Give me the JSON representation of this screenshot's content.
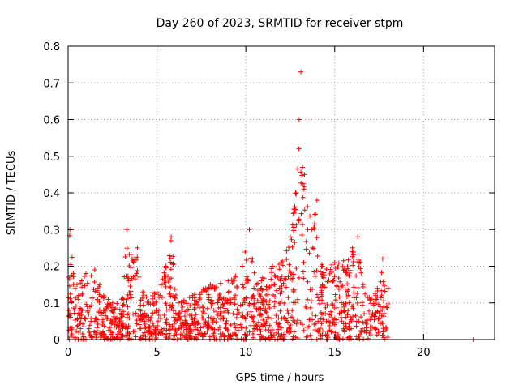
{
  "chart_data": {
    "type": "scatter",
    "title": "Day 260 of 2023, SRMTID for receiver stpm",
    "xlabel": "GPS time / hours",
    "ylabel": "SRMTID / TECUs",
    "xlim": [
      0,
      24
    ],
    "ylim": [
      0,
      0.8
    ],
    "x_ticks": [
      0,
      5,
      10,
      15,
      20
    ],
    "y_ticks": [
      0,
      0.1,
      0.2,
      0.3,
      0.4,
      0.5,
      0.6,
      0.7,
      0.8
    ],
    "x_tick_labels": [
      "0",
      "5",
      "10",
      "15",
      "20"
    ],
    "y_tick_labels": [
      "0",
      "0.1",
      "0.2",
      "0.3",
      "0.4",
      "0.5",
      "0.6",
      "0.7",
      "0.8"
    ],
    "grid": true,
    "marker": "+",
    "marker_color": "#ff0000",
    "envelope": [
      {
        "x": 0.0,
        "y": 0.17
      },
      {
        "x": 0.1,
        "y": 0.3
      },
      {
        "x": 0.3,
        "y": 0.18
      },
      {
        "x": 0.5,
        "y": 0.15
      },
      {
        "x": 1.0,
        "y": 0.18
      },
      {
        "x": 1.5,
        "y": 0.19
      },
      {
        "x": 2.0,
        "y": 0.12
      },
      {
        "x": 2.5,
        "y": 0.1
      },
      {
        "x": 3.0,
        "y": 0.11
      },
      {
        "x": 3.3,
        "y": 0.3
      },
      {
        "x": 3.6,
        "y": 0.22
      },
      {
        "x": 3.9,
        "y": 0.25
      },
      {
        "x": 4.2,
        "y": 0.13
      },
      {
        "x": 5.0,
        "y": 0.13
      },
      {
        "x": 5.5,
        "y": 0.2
      },
      {
        "x": 5.8,
        "y": 0.28
      },
      {
        "x": 6.2,
        "y": 0.1
      },
      {
        "x": 7.0,
        "y": 0.12
      },
      {
        "x": 8.0,
        "y": 0.15
      },
      {
        "x": 9.0,
        "y": 0.16
      },
      {
        "x": 9.8,
        "y": 0.2
      },
      {
        "x": 10.2,
        "y": 0.3
      },
      {
        "x": 10.6,
        "y": 0.15
      },
      {
        "x": 11.5,
        "y": 0.2
      },
      {
        "x": 12.0,
        "y": 0.21
      },
      {
        "x": 12.5,
        "y": 0.28
      },
      {
        "x": 12.8,
        "y": 0.4
      },
      {
        "x": 13.0,
        "y": 0.6
      },
      {
        "x": 13.1,
        "y": 0.73
      },
      {
        "x": 13.3,
        "y": 0.45
      },
      {
        "x": 13.7,
        "y": 0.3
      },
      {
        "x": 14.0,
        "y": 0.38
      },
      {
        "x": 14.3,
        "y": 0.2
      },
      {
        "x": 15.0,
        "y": 0.21
      },
      {
        "x": 16.0,
        "y": 0.25
      },
      {
        "x": 16.3,
        "y": 0.28
      },
      {
        "x": 16.6,
        "y": 0.15
      },
      {
        "x": 17.0,
        "y": 0.11
      },
      {
        "x": 17.4,
        "y": 0.14
      },
      {
        "x": 17.7,
        "y": 0.22
      },
      {
        "x": 18.0,
        "y": 0.14
      }
    ],
    "isolated_points": [
      {
        "x": 22.8,
        "y": 0.0
      }
    ]
  }
}
